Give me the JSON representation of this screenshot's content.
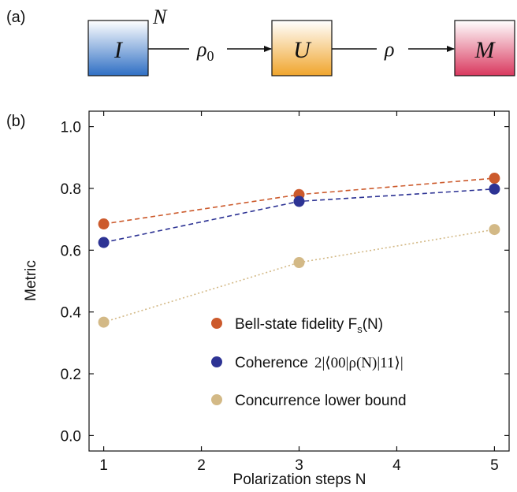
{
  "panel_a": {
    "label": "(a)",
    "blocks": [
      {
        "name": "I",
        "colors": [
          "#ffffff",
          "#2f6fc4"
        ]
      },
      {
        "name": "U",
        "colors": [
          "#ffffff",
          "#f0a52c"
        ]
      },
      {
        "name": "M",
        "colors": [
          "#ffffff",
          "#d9385e"
        ]
      }
    ],
    "n_label": "N",
    "arrow1_label": "ρ",
    "arrow1_sub": "0",
    "arrow2_label": "ρ"
  },
  "panel_b": {
    "label": "(b)"
  },
  "chart_data": {
    "type": "line",
    "x": [
      1,
      3,
      5
    ],
    "xlim": [
      0.85,
      5.15
    ],
    "ylim": [
      -0.05,
      1.05
    ],
    "xticks": [
      "1",
      "2",
      "3",
      "4",
      "5"
    ],
    "yticks": [
      "0.0",
      "0.2",
      "0.4",
      "0.6",
      "0.8",
      "1.0"
    ],
    "xlabel": "Polarization steps N",
    "ylabel": "Metric",
    "legend_position": "lower-right",
    "series": [
      {
        "name": "Bell-state fidelity F",
        "name_sub": "s",
        "name_tail": "(N)",
        "values": [
          0.685,
          0.78,
          0.833
        ],
        "color": "#cc5a2c",
        "line": "dashed"
      },
      {
        "name": "Coherence",
        "name_math": "2|⟨00|ρ(N)|11⟩|",
        "values": [
          0.625,
          0.758,
          0.798
        ],
        "color": "#2d3394",
        "line": "dashed"
      },
      {
        "name": "Concurrence lower bound",
        "values": [
          0.367,
          0.56,
          0.667
        ],
        "color": "#d3b986",
        "line": "dotted"
      }
    ]
  }
}
